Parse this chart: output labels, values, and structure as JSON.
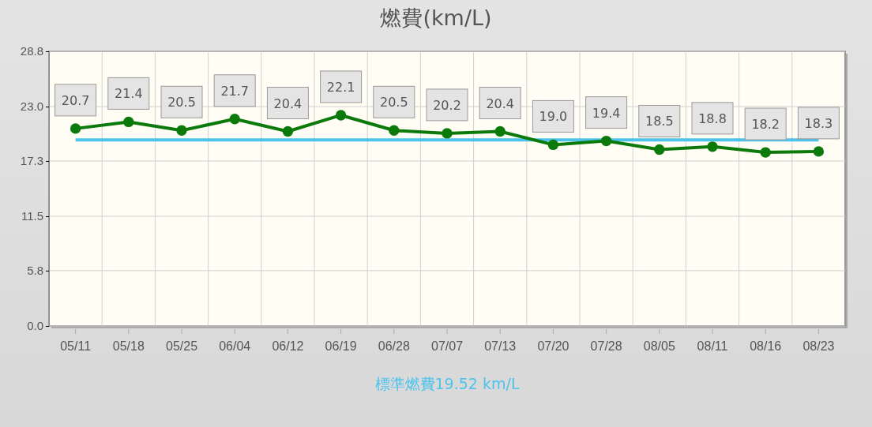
{
  "chart_data": {
    "type": "line",
    "title": "燃費(km/L)",
    "categories": [
      "05/11",
      "05/18",
      "05/25",
      "06/04",
      "06/12",
      "06/19",
      "06/28",
      "07/07",
      "07/13",
      "07/20",
      "07/28",
      "08/05",
      "08/11",
      "08/16",
      "08/23"
    ],
    "series": [
      {
        "color": "#0b7a0b",
        "values": [
          20.7,
          21.4,
          20.5,
          21.7,
          20.4,
          22.1,
          20.5,
          20.2,
          20.4,
          19.0,
          19.4,
          18.5,
          18.8,
          18.2,
          18.3
        ],
        "value_labels": [
          "20.7",
          "21.4",
          "20.5",
          "21.7",
          "20.4",
          "22.1",
          "20.5",
          "20.2",
          "20.4",
          "19.0",
          "19.4",
          "18.5",
          "18.8",
          "18.2",
          "18.3"
        ]
      }
    ],
    "ylim": [
      0,
      28.8
    ],
    "yticks": [
      {
        "value": 0,
        "label": "0.0"
      },
      5.8,
      11.5,
      17.3,
      {
        "value": 23,
        "label": "23.0"
      },
      28.8
    ],
    "ref_lines": [
      {
        "axis": "y",
        "value": 19.52,
        "label": "標準燃費19.52 km/L",
        "color": "#4cc3ec"
      }
    ],
    "grid": true,
    "marker": "circle",
    "line_style": "solid"
  }
}
